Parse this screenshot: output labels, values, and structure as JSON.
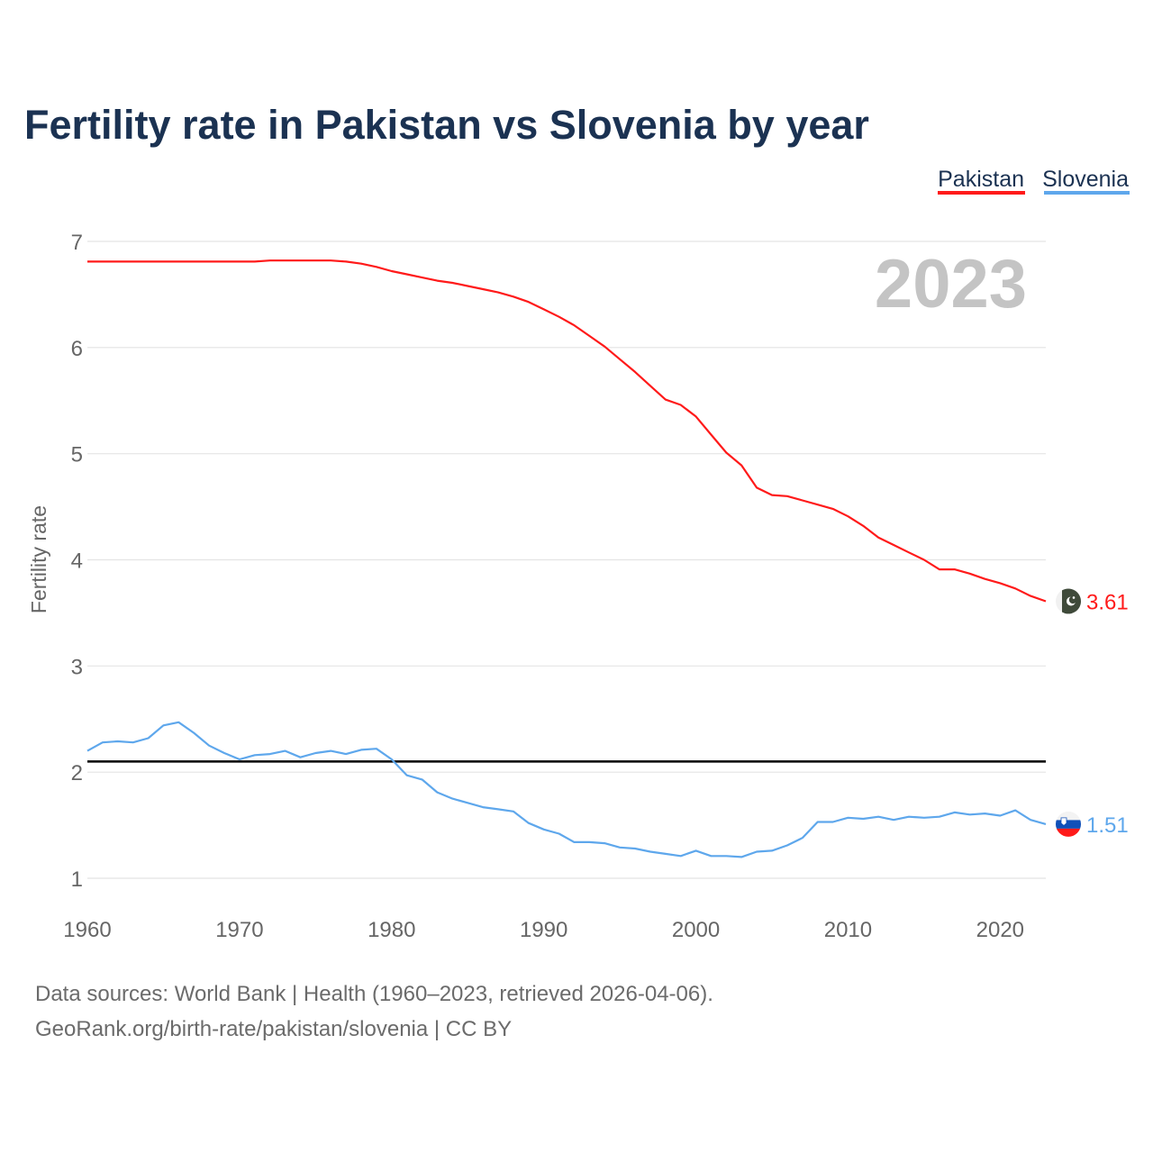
{
  "title": "Fertility rate in Pakistan vs Slovenia by year",
  "year_label": "2023",
  "footer": {
    "line1": "Data sources: World Bank | Health (1960–2023, retrieved 2026-04-06).",
    "line2": "GeoRank.org/birth-rate/pakistan/slovenia | CC BY"
  },
  "chart_data": {
    "type": "line",
    "title": "Fertility rate in Pakistan vs Slovenia by year",
    "xlabel": "",
    "ylabel": "Fertility rate",
    "xlim": [
      1960,
      2023
    ],
    "ylim": [
      1,
      7
    ],
    "x_ticks": [
      "1960",
      "1970",
      "1980",
      "1990",
      "2000",
      "2010",
      "2020"
    ],
    "y_ticks": [
      "1",
      "2",
      "3",
      "4",
      "5",
      "6",
      "7"
    ],
    "grid": true,
    "legend_position": "top-right",
    "reference_line": {
      "value": 2.1,
      "color": "#000000"
    },
    "x_start": 1960,
    "series": [
      {
        "name": "Pakistan",
        "color": "#ff1a1a",
        "flag": "pakistan-flag",
        "end_label": "3.61",
        "values": [
          6.81,
          6.81,
          6.81,
          6.81,
          6.81,
          6.81,
          6.81,
          6.81,
          6.81,
          6.81,
          6.81,
          6.81,
          6.82,
          6.82,
          6.82,
          6.82,
          6.82,
          6.81,
          6.79,
          6.76,
          6.72,
          6.69,
          6.66,
          6.63,
          6.61,
          6.58,
          6.55,
          6.52,
          6.48,
          6.43,
          6.36,
          6.29,
          6.21,
          6.11,
          6.01,
          5.89,
          5.77,
          5.64,
          5.51,
          5.46,
          5.35,
          5.18,
          5.01,
          4.89,
          4.68,
          4.61,
          4.6,
          4.56,
          4.52,
          4.48,
          4.41,
          4.32,
          4.21,
          4.14,
          4.07,
          4.0,
          3.91,
          3.91,
          3.87,
          3.82,
          3.78,
          3.73,
          3.66,
          3.61
        ]
      },
      {
        "name": "Slovenia",
        "color": "#5ea7ec",
        "flag": "slovenia-flag",
        "end_label": "1.51",
        "values": [
          2.2,
          2.28,
          2.29,
          2.28,
          2.32,
          2.44,
          2.47,
          2.37,
          2.25,
          2.18,
          2.12,
          2.16,
          2.17,
          2.2,
          2.14,
          2.18,
          2.2,
          2.17,
          2.21,
          2.22,
          2.12,
          1.97,
          1.93,
          1.81,
          1.75,
          1.71,
          1.67,
          1.65,
          1.63,
          1.52,
          1.46,
          1.42,
          1.34,
          1.34,
          1.33,
          1.29,
          1.28,
          1.25,
          1.23,
          1.21,
          1.26,
          1.21,
          1.21,
          1.2,
          1.25,
          1.26,
          1.31,
          1.38,
          1.53,
          1.53,
          1.57,
          1.56,
          1.58,
          1.55,
          1.58,
          1.57,
          1.58,
          1.62,
          1.6,
          1.61,
          1.59,
          1.64,
          1.55,
          1.51
        ]
      }
    ]
  }
}
